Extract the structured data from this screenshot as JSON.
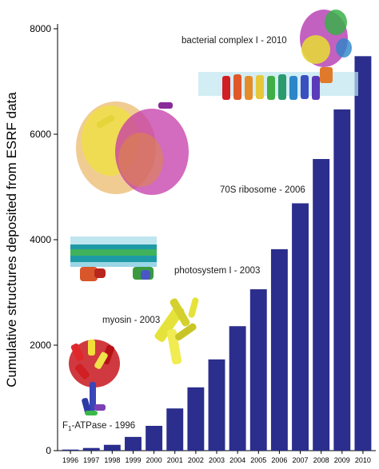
{
  "chart_data": {
    "type": "bar",
    "ylabel": "Cumulative structures deposited from ESRF data",
    "xlabel": "",
    "ylim": [
      0,
      8000
    ],
    "yticks": [
      0,
      2000,
      4000,
      6000,
      8000
    ],
    "categories": [
      "1996",
      "1997",
      "1998",
      "1999",
      "2000",
      "2001",
      "2002",
      "2003",
      "2004",
      "2005",
      "2006",
      "2007",
      "2008",
      "2009",
      "2010"
    ],
    "values": [
      20,
      50,
      110,
      260,
      470,
      800,
      1200,
      1730,
      2360,
      3060,
      3820,
      4690,
      5530,
      6470,
      7480
    ],
    "bar_color": "#2b2e8c",
    "grid": false,
    "annotations": [
      {
        "id": "atpase",
        "prefix": "F",
        "sub": "1",
        "suffix": "-ATPase - 1996"
      },
      {
        "id": "myosin",
        "text": "myosin - 2003"
      },
      {
        "id": "photosystem",
        "text": "photosystem I - 2003"
      },
      {
        "id": "ribosome",
        "text": "70S ribosome - 2006"
      },
      {
        "id": "complex1",
        "text": "bacterial complex I - 2010"
      }
    ]
  }
}
